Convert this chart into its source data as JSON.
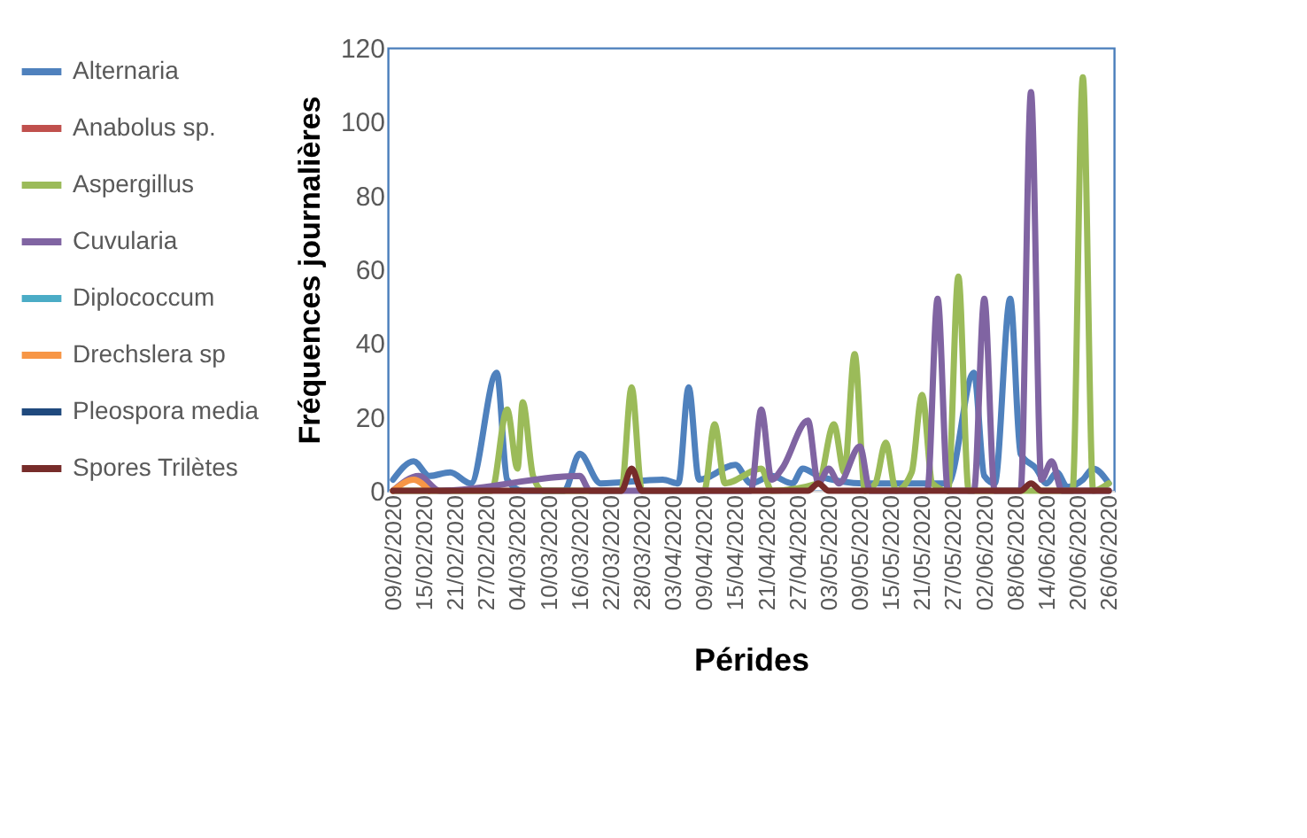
{
  "chart_data": {
    "type": "line",
    "xlabel": "Pérides",
    "ylabel": "Fréquences journalières",
    "xlim": [
      "2020-02-08",
      "2020-06-27"
    ],
    "xticks": [
      {
        "value": "2020-02-09",
        "label": "09/02/2020"
      },
      {
        "value": "2020-02-15",
        "label": "15/02/2020"
      },
      {
        "value": "2020-02-21",
        "label": "21/02/2020"
      },
      {
        "value": "2020-02-27",
        "label": "27/02/2020"
      },
      {
        "value": "2020-03-04",
        "label": "04/03/2020"
      },
      {
        "value": "2020-03-10",
        "label": "10/03/2020"
      },
      {
        "value": "2020-03-16",
        "label": "16/03/2020"
      },
      {
        "value": "2020-03-22",
        "label": "22/03/2020"
      },
      {
        "value": "2020-03-28",
        "label": "28/03/2020"
      },
      {
        "value": "2020-04-03",
        "label": "03/04/2020"
      },
      {
        "value": "2020-04-09",
        "label": "09/04/2020"
      },
      {
        "value": "2020-04-15",
        "label": "15/04/2020"
      },
      {
        "value": "2020-04-21",
        "label": "21/04/2020"
      },
      {
        "value": "2020-04-27",
        "label": "27/04/2020"
      },
      {
        "value": "2020-05-03",
        "label": "03/05/2020"
      },
      {
        "value": "2020-05-09",
        "label": "09/05/2020"
      },
      {
        "value": "2020-05-15",
        "label": "15/05/2020"
      },
      {
        "value": "2020-05-21",
        "label": "21/05/2020"
      },
      {
        "value": "2020-05-27",
        "label": "27/05/2020"
      },
      {
        "value": "2020-06-02",
        "label": "02/06/2020"
      },
      {
        "value": "2020-06-08",
        "label": "08/06/2020"
      },
      {
        "value": "2020-06-14",
        "label": "14/06/2020"
      },
      {
        "value": "2020-06-20",
        "label": "20/06/2020"
      },
      {
        "value": "2020-06-26",
        "label": "26/06/2020"
      }
    ],
    "ylim": [
      0,
      120
    ],
    "yticks": [
      0,
      20,
      40,
      60,
      80,
      100,
      120
    ],
    "legend": "left",
    "grid": false,
    "marker": "none",
    "series": [
      {
        "name": "Alternaria",
        "color": "#4f81bd",
        "x": [
          "2020-02-09",
          "2020-02-13",
          "2020-02-16",
          "2020-02-20",
          "2020-02-24",
          "2020-02-29",
          "2020-03-02",
          "2020-03-05",
          "2020-03-13",
          "2020-03-16",
          "2020-03-20",
          "2020-04-01",
          "2020-04-04",
          "2020-04-06",
          "2020-04-08",
          "2020-04-15",
          "2020-04-18",
          "2020-04-22",
          "2020-04-26",
          "2020-04-28",
          "2020-05-01",
          "2020-05-10",
          "2020-05-17",
          "2020-05-26",
          "2020-05-31",
          "2020-06-02",
          "2020-06-04",
          "2020-06-07",
          "2020-06-09",
          "2020-06-12",
          "2020-06-14",
          "2020-06-16",
          "2020-06-18",
          "2020-06-21",
          "2020-06-23",
          "2020-06-26"
        ],
        "values": [
          3,
          8,
          4,
          5,
          2,
          32,
          3,
          0,
          0,
          10,
          2,
          3,
          2,
          28,
          3,
          7,
          2,
          4,
          2,
          6,
          4,
          2,
          2,
          2,
          32,
          4,
          2,
          52,
          10,
          6,
          2,
          5,
          1,
          3,
          6,
          2
        ]
      },
      {
        "name": "Anabolus sp.",
        "color": "#c0504d"
      },
      {
        "name": "Aspergillus",
        "color": "#9bbb59",
        "x": [
          "2020-02-09",
          "2020-02-28",
          "2020-03-02",
          "2020-03-04",
          "2020-03-05",
          "2020-03-07",
          "2020-03-09",
          "2020-03-24",
          "2020-03-26",
          "2020-03-28",
          "2020-04-09",
          "2020-04-11",
          "2020-04-13",
          "2020-04-20",
          "2020-04-22",
          "2020-05-01",
          "2020-05-04",
          "2020-05-06",
          "2020-05-08",
          "2020-05-10",
          "2020-05-12",
          "2020-05-14",
          "2020-05-16",
          "2020-05-19",
          "2020-05-21",
          "2020-05-23",
          "2020-05-26",
          "2020-05-28",
          "2020-05-30",
          "2020-06-19",
          "2020-06-21",
          "2020-06-23",
          "2020-06-26"
        ],
        "values": [
          0,
          0,
          22,
          6,
          24,
          4,
          0,
          0,
          28,
          0,
          0,
          18,
          2,
          6,
          0,
          2,
          18,
          5,
          37,
          0,
          2,
          13,
          0,
          5,
          26,
          2,
          0,
          58,
          0,
          0,
          112,
          0,
          2
        ]
      },
      {
        "name": "Cuvularia",
        "color": "#8064a2",
        "x": [
          "2020-02-09",
          "2020-02-14",
          "2020-02-18",
          "2020-03-16",
          "2020-03-18",
          "2020-04-18",
          "2020-04-20",
          "2020-04-22",
          "2020-04-24",
          "2020-04-29",
          "2020-05-01",
          "2020-05-03",
          "2020-05-05",
          "2020-05-09",
          "2020-05-11",
          "2020-05-22",
          "2020-05-24",
          "2020-05-26",
          "2020-05-31",
          "2020-06-02",
          "2020-06-04",
          "2020-06-09",
          "2020-06-11",
          "2020-06-13",
          "2020-06-15",
          "2020-06-17",
          "2020-06-26"
        ],
        "values": [
          0,
          4,
          0,
          4,
          0,
          0,
          22,
          3,
          6,
          19,
          2,
          6,
          2,
          12,
          0,
          0,
          52,
          0,
          0,
          52,
          0,
          0,
          108,
          3,
          8,
          0,
          0
        ]
      },
      {
        "name": "Diplococcum",
        "color": "#4bacc6"
      },
      {
        "name": "Drechslera sp",
        "color": "#f79646",
        "x": [
          "2020-02-09",
          "2020-02-13",
          "2020-02-16"
        ],
        "values": [
          0,
          3,
          0
        ]
      },
      {
        "name": "Pleospora media",
        "color": "#1f497d"
      },
      {
        "name": "Spores Trilètes",
        "color": "#772c2a",
        "x": [
          "2020-02-09",
          "2020-03-24",
          "2020-03-26",
          "2020-03-28",
          "2020-04-29",
          "2020-05-01",
          "2020-05-03",
          "2020-06-09",
          "2020-06-11",
          "2020-06-13",
          "2020-06-26"
        ],
        "values": [
          0,
          0,
          6,
          0,
          0,
          2,
          0,
          0,
          2,
          0,
          0
        ]
      }
    ]
  }
}
